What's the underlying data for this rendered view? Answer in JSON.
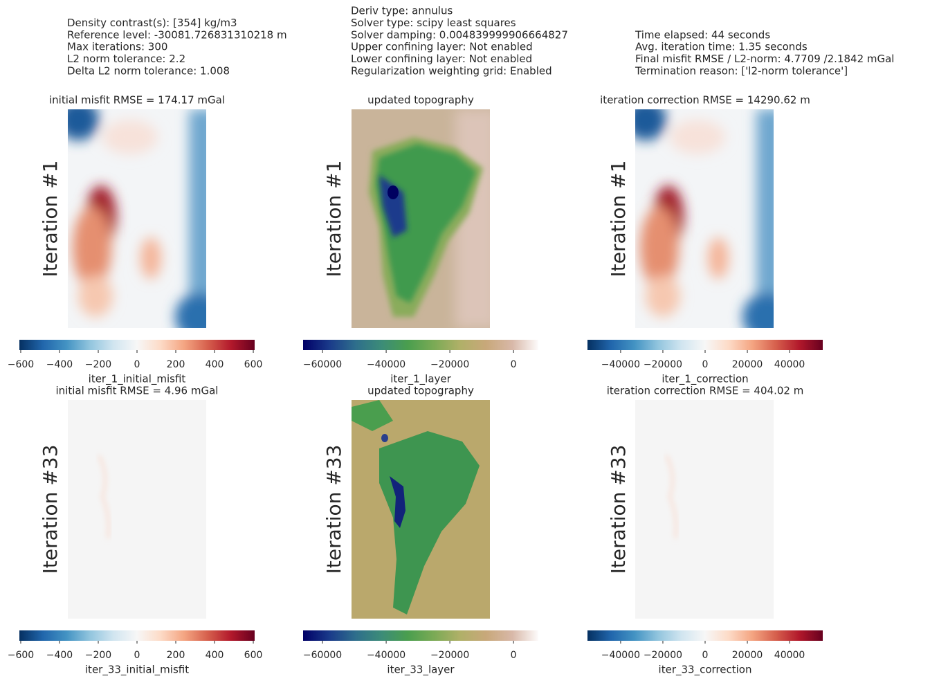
{
  "header": {
    "columns": [
      [
        "Density contrast(s): [354] kg/m3",
        "Reference level: -30081.726831310218 m",
        "Max iterations: 300",
        "L2 norm tolerance: 2.2",
        "Delta L2 norm tolerance: 1.008"
      ],
      [
        "Deriv type: annulus",
        "Solver type: scipy least squares",
        "Solver damping: 0.004839999906664827",
        "Upper confining layer: Not enabled",
        "Lower confining layer: Not enabled",
        "Regularization weighting grid: Enabled"
      ],
      [
        "Time elapsed: 44 seconds",
        "Avg. iteration time: 1.35 seconds",
        "Final misfit RMSE / L2-norm: 4.7709 /2.1842 mGal",
        "Termination reason: ['l2-norm tolerance']"
      ]
    ]
  },
  "chart_data": [
    {
      "type": "heatmap",
      "title": "initial misfit RMSE = 174.17 mGal",
      "ylabel": "Iteration #1",
      "colorbar": {
        "label": "iter_1_initial_misfit",
        "xlim": [
          -607,
          607
        ],
        "xticks": [
          {
            "value": -600,
            "label": "−600"
          },
          {
            "value": -400,
            "label": "−400"
          },
          {
            "value": -200,
            "label": "−200"
          },
          0,
          200,
          400,
          600
        ],
        "colors": [
          "#053061",
          "#2166ac",
          "#4393c3",
          "#92c5de",
          "#d1e5f0",
          "#f7f7f7",
          "#fddbc7",
          "#f4a582",
          "#d6604d",
          "#b2182b",
          "#67001f"
        ]
      }
    },
    {
      "type": "heatmap",
      "title": "updated topography",
      "ylabel": "Iteration #1",
      "colorbar": {
        "label": "iter_1_layer",
        "xlim": [
          -66100,
          7800
        ],
        "xticks": [
          {
            "value": -60000,
            "label": "−60000"
          },
          {
            "value": -40000,
            "label": "−40000"
          },
          {
            "value": -20000,
            "label": "−20000"
          },
          0
        ],
        "colors": [
          "#000066",
          "#1a3a8a",
          "#2e6e8c",
          "#3c8c78",
          "#4a9e4e",
          "#7aaa55",
          "#b0b068",
          "#c8a87a",
          "#d8b8a8",
          "#fdfbfb"
        ]
      }
    },
    {
      "type": "heatmap",
      "title": "iteration correction RMSE = 14290.62 m",
      "ylabel": "Iteration #1",
      "colorbar": {
        "label": "iter_1_correction",
        "xlim": [
          -55700,
          55700
        ],
        "xticks": [
          {
            "value": -40000,
            "label": "−40000"
          },
          {
            "value": -20000,
            "label": "−20000"
          },
          0,
          20000,
          40000
        ],
        "colors": [
          "#053061",
          "#2166ac",
          "#4393c3",
          "#92c5de",
          "#d1e5f0",
          "#f7f7f7",
          "#fddbc7",
          "#f4a582",
          "#d6604d",
          "#b2182b",
          "#67001f"
        ]
      }
    },
    {
      "type": "heatmap",
      "title": "initial misfit RMSE = 4.96 mGal",
      "ylabel": "Iteration #33",
      "colorbar": {
        "label": "iter_33_initial_misfit",
        "xlim": [
          -607,
          607
        ],
        "xticks": [
          {
            "value": -600,
            "label": "−600"
          },
          {
            "value": -400,
            "label": "−400"
          },
          {
            "value": -200,
            "label": "−200"
          },
          0,
          200,
          400,
          600
        ],
        "colors": [
          "#053061",
          "#2166ac",
          "#4393c3",
          "#92c5de",
          "#d1e5f0",
          "#f7f7f7",
          "#fddbc7",
          "#f4a582",
          "#d6604d",
          "#b2182b",
          "#67001f"
        ]
      }
    },
    {
      "type": "heatmap",
      "title": "updated topography",
      "ylabel": "Iteration #33",
      "colorbar": {
        "label": "iter_33_layer",
        "xlim": [
          -66100,
          7800
        ],
        "xticks": [
          {
            "value": -60000,
            "label": "−60000"
          },
          {
            "value": -40000,
            "label": "−40000"
          },
          {
            "value": -20000,
            "label": "−20000"
          },
          0
        ],
        "colors": [
          "#000066",
          "#1a3a8a",
          "#2e6e8c",
          "#3c8c78",
          "#4a9e4e",
          "#7aaa55",
          "#b0b068",
          "#c8a87a",
          "#d8b8a8",
          "#fdfbfb"
        ]
      }
    },
    {
      "type": "heatmap",
      "title": "iteration correction RMSE = 404.02 m",
      "ylabel": "Iteration #33",
      "colorbar": {
        "label": "iter_33_correction",
        "xlim": [
          -55700,
          55700
        ],
        "xticks": [
          {
            "value": -40000,
            "label": "−40000"
          },
          {
            "value": -20000,
            "label": "−20000"
          },
          0,
          20000,
          40000
        ],
        "colors": [
          "#053061",
          "#2166ac",
          "#4393c3",
          "#92c5de",
          "#d1e5f0",
          "#f7f7f7",
          "#fddbc7",
          "#f4a582",
          "#d6604d",
          "#b2182b",
          "#67001f"
        ]
      }
    }
  ]
}
